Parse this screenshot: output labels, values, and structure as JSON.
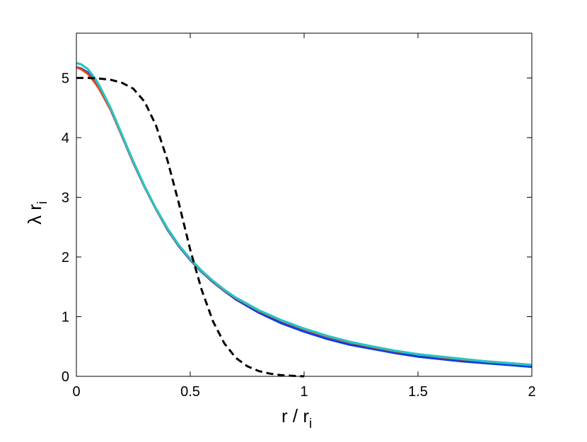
{
  "chart_data": {
    "type": "line",
    "xlabel": {
      "main": "r / r",
      "sub": "i"
    },
    "ylabel": {
      "main": "λ r",
      "sub": "i"
    },
    "xlim": [
      0,
      2
    ],
    "ylim": [
      0,
      5.75
    ],
    "xticks": [
      "0",
      "0.5",
      "1",
      "1.5",
      "2"
    ],
    "yticks": [
      "0",
      "1",
      "2",
      "3",
      "4",
      "5"
    ],
    "grid": false,
    "legend": "none",
    "series": [
      {
        "color": "#0a3de0",
        "dash": "solid",
        "x": [
          0,
          0.02,
          0.05,
          0.08,
          0.1,
          0.15,
          0.2,
          0.25,
          0.3,
          0.35,
          0.4,
          0.45,
          0.5,
          0.55,
          0.6,
          0.65,
          0.7,
          0.8,
          0.9,
          1.0,
          1.1,
          1.2,
          1.3,
          1.4,
          1.5,
          1.6,
          1.7,
          1.8,
          1.9,
          2.0
        ],
        "y": [
          5.18,
          5.16,
          5.09,
          4.95,
          4.83,
          4.48,
          4.03,
          3.58,
          3.17,
          2.8,
          2.46,
          2.18,
          1.95,
          1.75,
          1.58,
          1.43,
          1.29,
          1.07,
          0.89,
          0.75,
          0.63,
          0.53,
          0.46,
          0.39,
          0.33,
          0.29,
          0.25,
          0.22,
          0.19,
          0.16
        ]
      },
      {
        "color": "#e8401c",
        "dash": "solid",
        "x": [
          0,
          0.02,
          0.05,
          0.08,
          0.1,
          0.15,
          0.2,
          0.25,
          0.3,
          0.35,
          0.4,
          0.45,
          0.5,
          0.55,
          0.6,
          0.65,
          0.7,
          0.8,
          0.9,
          1.0,
          1.1,
          1.2,
          1.3,
          1.4,
          1.5,
          1.6,
          1.7,
          1.8,
          1.9,
          2.0
        ],
        "y": [
          5.18,
          5.15,
          5.07,
          4.93,
          4.82,
          4.47,
          4.03,
          3.58,
          3.17,
          2.8,
          2.47,
          2.19,
          1.96,
          1.76,
          1.59,
          1.44,
          1.31,
          1.1,
          0.93,
          0.79,
          0.67,
          0.57,
          0.49,
          0.42,
          0.37,
          0.32,
          0.28,
          0.25,
          0.22,
          0.19
        ]
      },
      {
        "color": "#22c6c6",
        "dash": "solid",
        "x": [
          0,
          0.02,
          0.05,
          0.08,
          0.1,
          0.15,
          0.2,
          0.25,
          0.3,
          0.35,
          0.4,
          0.45,
          0.5,
          0.55,
          0.6,
          0.65,
          0.7,
          0.8,
          0.9,
          1.0,
          1.1,
          1.2,
          1.3,
          1.4,
          1.5,
          1.6,
          1.7,
          1.8,
          1.9,
          2.0
        ],
        "y": [
          5.25,
          5.23,
          5.15,
          5.0,
          4.88,
          4.5,
          4.05,
          3.6,
          3.18,
          2.81,
          2.48,
          2.2,
          1.97,
          1.77,
          1.6,
          1.45,
          1.32,
          1.11,
          0.94,
          0.8,
          0.68,
          0.58,
          0.5,
          0.43,
          0.37,
          0.33,
          0.29,
          0.25,
          0.22,
          0.19
        ]
      },
      {
        "color": "#000000",
        "dash": "dashed",
        "x": [
          0,
          0.05,
          0.1,
          0.15,
          0.2,
          0.25,
          0.3,
          0.35,
          0.4,
          0.45,
          0.5,
          0.55,
          0.6,
          0.65,
          0.7,
          0.75,
          0.8,
          0.85,
          0.9,
          0.95,
          1.0
        ],
        "y": [
          5.0,
          5.0,
          4.99,
          4.97,
          4.92,
          4.82,
          4.6,
          4.2,
          3.62,
          2.9,
          2.12,
          1.45,
          0.92,
          0.55,
          0.31,
          0.17,
          0.09,
          0.045,
          0.02,
          0.008,
          0.0
        ]
      }
    ]
  }
}
